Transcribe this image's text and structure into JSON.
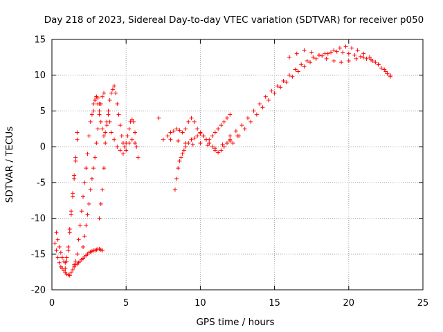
{
  "chart_data": {
    "type": "scatter",
    "title": "Day 218 of 2023, Sidereal Day-to-day VTEC variation (SDTVAR) for receiver p050",
    "xlabel": "GPS time / hours",
    "ylabel": "SDTVAR / TECUs",
    "xlim": [
      0,
      25
    ],
    "ylim": [
      -20,
      15
    ],
    "xticks": [
      0,
      5,
      10,
      15,
      20,
      25
    ],
    "yticks": [
      -20,
      -15,
      -10,
      -5,
      0,
      5,
      10,
      15
    ],
    "grid": true,
    "marker": "+",
    "color": "#ff0000",
    "series": [
      {
        "name": "SDTVAR",
        "x": [
          0.2,
          0.3,
          0.4,
          0.5,
          0.6,
          0.7,
          0.8,
          0.9,
          1.0,
          1.1,
          1.2,
          1.3,
          1.4,
          1.5,
          1.6,
          1.7,
          1.8,
          1.9,
          2.0,
          2.1,
          2.2,
          2.3,
          2.4,
          2.5,
          2.6,
          2.7,
          2.8,
          2.9,
          3.0,
          3.1,
          3.2,
          3.3,
          3.4,
          0.3,
          0.4,
          0.5,
          0.6,
          0.7,
          0.8,
          0.9,
          1.0,
          1.1,
          1.2,
          1.3,
          1.4,
          1.5,
          1.6,
          1.7,
          0.9,
          1.0,
          1.1,
          1.2,
          1.3,
          1.4,
          1.5,
          1.6,
          1.7,
          1.5,
          1.6,
          1.7,
          1.8,
          1.9,
          2.0,
          2.1,
          2.2,
          2.3,
          2.4,
          2.5,
          2.6,
          2.7,
          2.8,
          2.9,
          3.0,
          3.1,
          3.2,
          2.1,
          2.2,
          2.3,
          2.4,
          2.5,
          2.6,
          2.7,
          2.8,
          2.9,
          3.0,
          3.1,
          3.2,
          3.3,
          3.4,
          3.5,
          2.8,
          2.9,
          3.0,
          3.1,
          3.2,
          3.3,
          3.4,
          3.5,
          3.6,
          3.7,
          3.8,
          3.9,
          4.0,
          4.1,
          4.2,
          4.3,
          4.4,
          4.5,
          4.6,
          4.7,
          4.8,
          4.9,
          5.0,
          5.1,
          5.2,
          5.3,
          5.4,
          5.5,
          5.6,
          5.7,
          3.2,
          3.3,
          3.4,
          3.5,
          3.6,
          3.7,
          3.8,
          3.9,
          4.0,
          4.2,
          4.4,
          4.6,
          4.8,
          5.0,
          5.2,
          5.4,
          5.6,
          5.8,
          7.2,
          7.5,
          7.8,
          8.0,
          8.2,
          8.4,
          8.6,
          8.8,
          9.0,
          9.2,
          9.4,
          9.6,
          9.8,
          10.0,
          10.2,
          10.4,
          10.6,
          10.8,
          11.0,
          11.2,
          11.4,
          11.6,
          11.8,
          12.0,
          8.3,
          8.4,
          8.5,
          8.6,
          8.7,
          8.8,
          8.9,
          9.0,
          9.2,
          9.4,
          9.6,
          9.8,
          10.0,
          10.2,
          10.4,
          10.6,
          10.8,
          11.0,
          11.2,
          11.4,
          11.6,
          11.8,
          12.0,
          8.0,
          8.5,
          9.0,
          9.5,
          10.0,
          10.5,
          11.0,
          11.5,
          12.0,
          12.5,
          12.0,
          12.4,
          12.8,
          13.2,
          13.6,
          14.0,
          14.4,
          14.8,
          15.2,
          15.6,
          16.0,
          16.4,
          16.8,
          17.2,
          17.6,
          18.0,
          18.4,
          18.8,
          19.2,
          19.6,
          20.0,
          20.4,
          20.8,
          21.2,
          21.6,
          22.0,
          22.4,
          22.8,
          12.2,
          12.6,
          13.0,
          13.4,
          13.8,
          14.2,
          14.6,
          15.0,
          15.4,
          15.8,
          16.2,
          16.6,
          17.0,
          17.4,
          17.8,
          18.2,
          18.6,
          19.0,
          19.4,
          19.8,
          20.2,
          20.6,
          21.0,
          21.4,
          21.8,
          22.2,
          22.6,
          16.0,
          16.5,
          17.0,
          17.5,
          18.0,
          18.5,
          19.0,
          19.5,
          20.0,
          20.5,
          21.0,
          21.5,
          22.0,
          22.5,
          22.8
        ],
        "y": [
          -13.5,
          -14.5,
          -15.5,
          -16.2,
          -16.8,
          -17.0,
          -17.3,
          -17.6,
          -17.8,
          -17.9,
          -18.0,
          -17.6,
          -17.2,
          -16.8,
          -16.5,
          -16.4,
          -16.2,
          -16.0,
          -15.8,
          -15.6,
          -15.4,
          -15.2,
          -15.0,
          -14.8,
          -14.7,
          -14.6,
          -14.5,
          -14.5,
          -14.4,
          -14.3,
          -14.3,
          -14.4,
          -14.5,
          -12.0,
          -13.0,
          -14.0,
          -14.8,
          -15.5,
          -16.0,
          -16.2,
          -15.5,
          -14.0,
          -11.5,
          -9.0,
          -6.5,
          -4.0,
          -1.5,
          1.0,
          -17.0,
          -16.0,
          -14.5,
          -12.0,
          -9.5,
          -7.0,
          -4.5,
          -2.0,
          2.0,
          -16.5,
          -16.0,
          -15.0,
          -13.0,
          -11.0,
          -9.0,
          -7.0,
          -5.0,
          -3.0,
          -1.0,
          1.5,
          3.5,
          4.5,
          5.0,
          6.5,
          7.0,
          6.8,
          6.0,
          -14.0,
          -12.5,
          -11.0,
          -9.5,
          -8.0,
          -6.0,
          -4.5,
          -3.0,
          -1.5,
          0.5,
          2.5,
          4.5,
          6.0,
          7.0,
          7.5,
          6.0,
          6.5,
          7.0,
          6.0,
          5.0,
          3.5,
          2.5,
          1.5,
          2.0,
          3.5,
          5.0,
          6.5,
          7.5,
          8.0,
          8.5,
          7.5,
          6.0,
          4.5,
          3.0,
          1.5,
          0.5,
          0.0,
          0.5,
          1.5,
          2.5,
          3.5,
          3.8,
          3.5,
          2.0,
          0.0,
          -10.0,
          -8.0,
          -6.0,
          -3.0,
          0.5,
          3.0,
          4.5,
          3.5,
          2.0,
          1.0,
          0.0,
          -0.5,
          -1.0,
          -0.5,
          0.5,
          1.0,
          0.5,
          -1.5,
          4.0,
          1.0,
          1.5,
          2.0,
          2.2,
          2.5,
          2.3,
          2.0,
          2.5,
          3.5,
          4.0,
          3.5,
          2.5,
          2.0,
          1.5,
          1.0,
          1.0,
          1.5,
          2.0,
          2.5,
          3.0,
          3.5,
          4.0,
          4.5,
          -6.0,
          -4.5,
          -3.0,
          -2.0,
          -1.5,
          -1.0,
          -0.5,
          0.0,
          0.5,
          1.0,
          1.2,
          1.5,
          1.8,
          1.5,
          1.0,
          0.5,
          0.0,
          -0.5,
          -0.8,
          -0.5,
          0.0,
          0.5,
          1.0,
          1.0,
          0.8,
          0.5,
          0.3,
          0.5,
          0.2,
          -0.2,
          0.3,
          0.8,
          1.5,
          1.5,
          2.2,
          3.0,
          4.0,
          5.0,
          6.0,
          7.0,
          7.8,
          8.5,
          9.2,
          10.0,
          10.8,
          11.5,
          12.0,
          12.5,
          12.8,
          13.0,
          13.2,
          13.3,
          13.2,
          13.0,
          12.8,
          12.6,
          12.3,
          12.0,
          11.5,
          10.8,
          10.0,
          0.5,
          1.5,
          2.5,
          3.5,
          4.5,
          5.5,
          6.5,
          7.5,
          8.3,
          9.0,
          9.8,
          10.5,
          11.2,
          11.8,
          12.3,
          12.7,
          13.0,
          13.5,
          13.8,
          14.0,
          13.8,
          13.5,
          13.0,
          12.5,
          11.8,
          11.0,
          10.2,
          12.5,
          13.0,
          13.5,
          13.2,
          12.8,
          12.3,
          12.0,
          11.8,
          12.0,
          12.3,
          12.5,
          12.2,
          11.5,
          10.5,
          9.8
        ]
      }
    ]
  }
}
